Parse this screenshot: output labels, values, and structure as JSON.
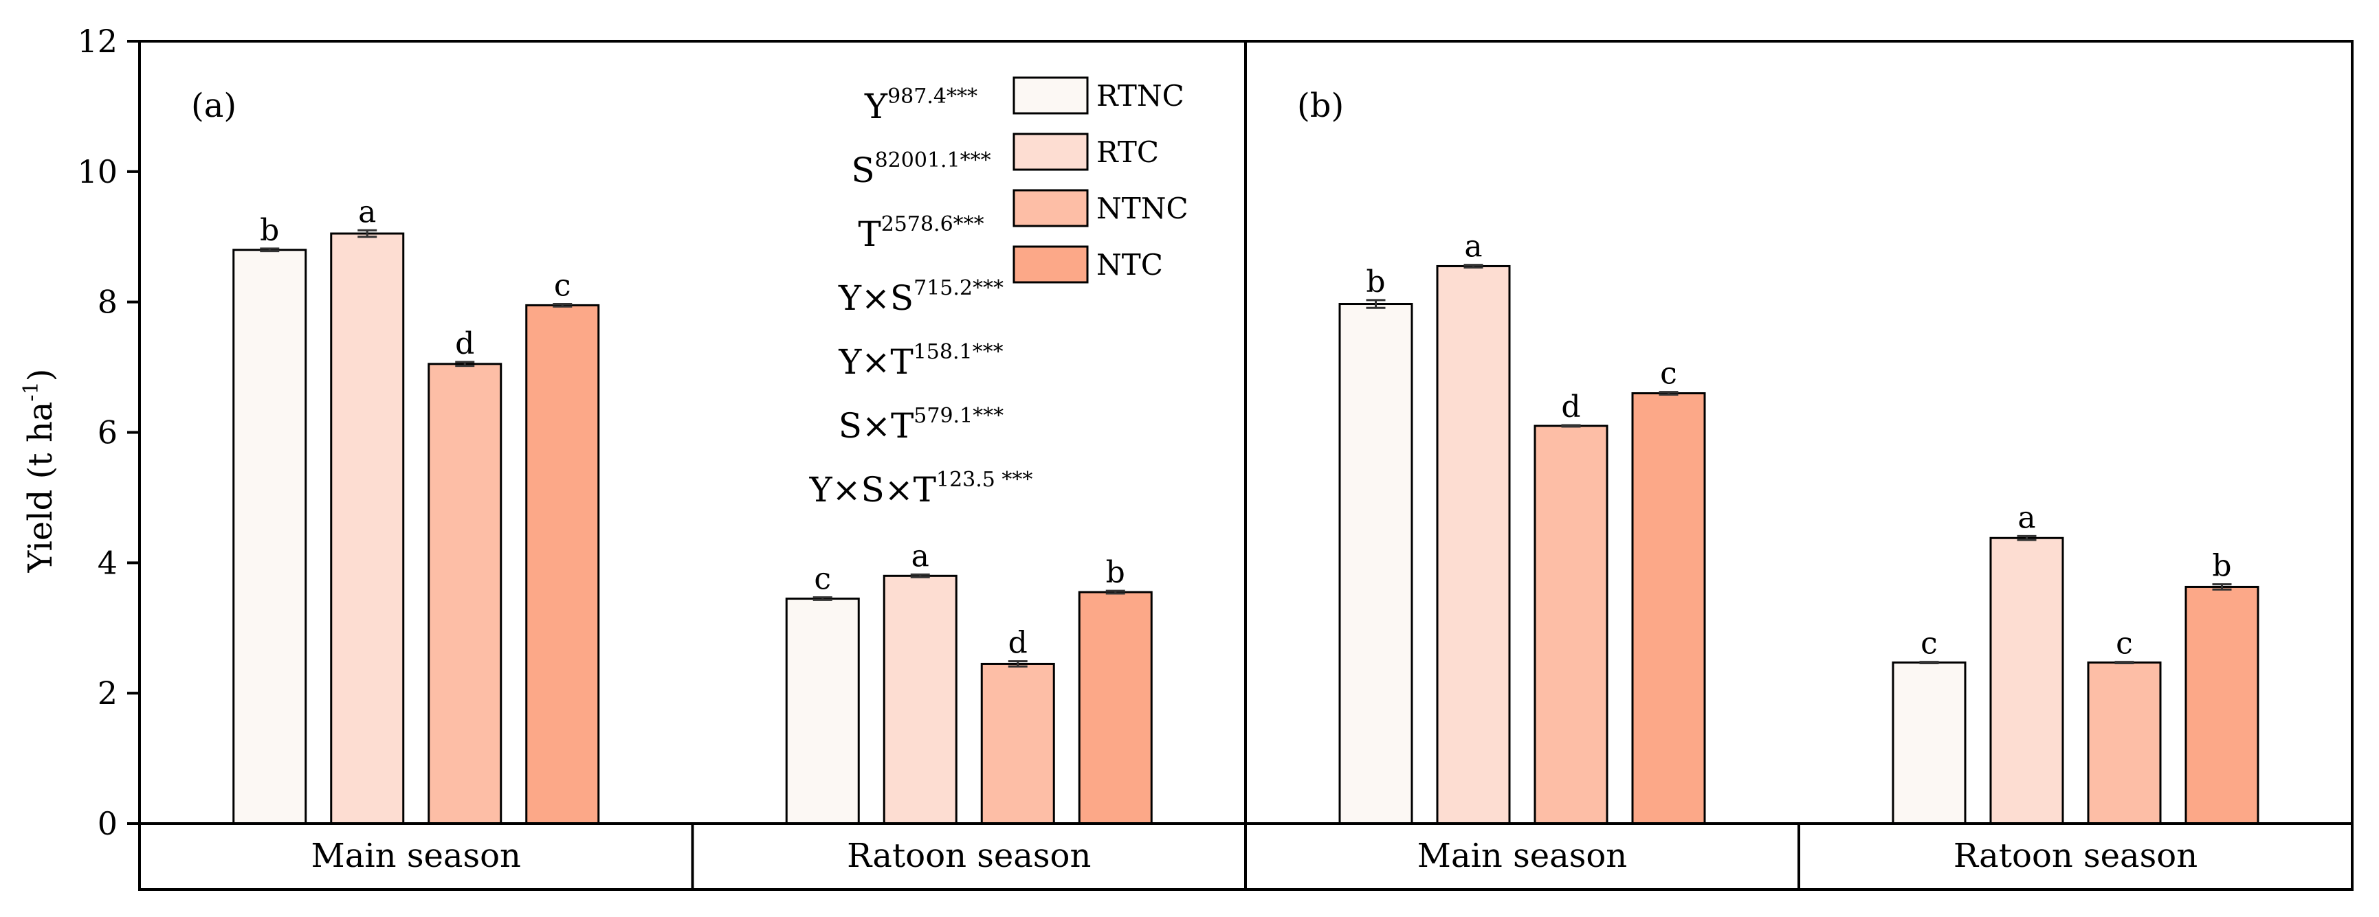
{
  "chart_data": {
    "type": "bar",
    "ylabel_main": "Yield (t ha",
    "ylabel_sup": "-1",
    "ylabel_close": ")",
    "ylim": [
      0,
      12
    ],
    "yticks": [
      0,
      2,
      4,
      6,
      8,
      10,
      12
    ],
    "series": [
      {
        "name": "RTNC",
        "color": "#fcf8f4"
      },
      {
        "name": "RTC",
        "color": "#fdddd2"
      },
      {
        "name": "NTNC",
        "color": "#fdbea6"
      },
      {
        "name": "NTC",
        "color": "#fca888"
      }
    ],
    "panels": [
      {
        "tag": "(a)",
        "groups": [
          {
            "category": "Main season",
            "values": [
              8.8,
              9.05,
              7.05,
              7.95
            ],
            "errors": [
              0.02,
              0.05,
              0.03,
              0.02
            ],
            "letters": [
              "b",
              "a",
              "d",
              "c"
            ]
          },
          {
            "category": "Ratoon season",
            "values": [
              3.45,
              3.8,
              2.45,
              3.55
            ],
            "errors": [
              0.02,
              0.02,
              0.04,
              0.02
            ],
            "letters": [
              "c",
              "a",
              "d",
              "b"
            ]
          }
        ],
        "stats": [
          {
            "base": "Y",
            "sup": "987.4***"
          },
          {
            "base": "S",
            "sup": "82001.1***"
          },
          {
            "base": "T",
            "sup": "2578.6***"
          },
          {
            "base": "Y×S",
            "sup": "715.2***"
          },
          {
            "base": "Y×T",
            "sup": "158.1***"
          },
          {
            "base": "S×T",
            "sup": "579.1***"
          },
          {
            "base": "Y×S×T",
            "sup": "123.5 ***"
          }
        ]
      },
      {
        "tag": "(b)",
        "groups": [
          {
            "category": "Main season",
            "values": [
              7.97,
              8.55,
              6.1,
              6.6
            ],
            "errors": [
              0.06,
              0.02,
              0.01,
              0.02
            ],
            "letters": [
              "b",
              "a",
              "d",
              "c"
            ]
          },
          {
            "category": "Ratoon season",
            "values": [
              2.47,
              4.38,
              2.47,
              3.63
            ],
            "errors": [
              0.01,
              0.03,
              0.01,
              0.04
            ],
            "letters": [
              "c",
              "a",
              "c",
              "b"
            ]
          }
        ],
        "stats": []
      }
    ]
  }
}
